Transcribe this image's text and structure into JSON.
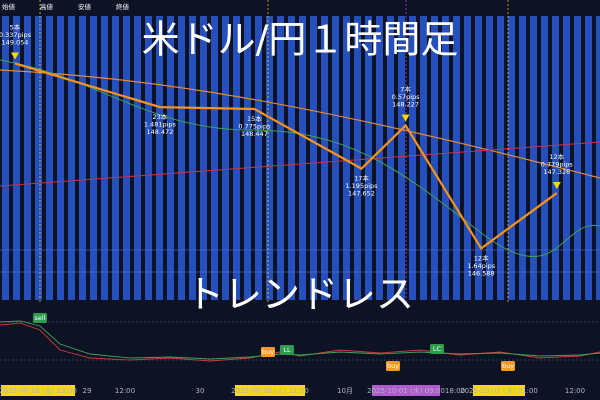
{
  "chart_data": {
    "type": "line",
    "title": "米ドル/円１時間足",
    "annotation": "トレンドレス",
    "header_labels": [
      "始値",
      "高値",
      "安値",
      "終値"
    ],
    "values": [
      149.054,
      148.472,
      148.447,
      147.652,
      148.227,
      146.588,
      147.326
    ],
    "bars": [
      5,
      23,
      15,
      17,
      7,
      12,
      12
    ],
    "bar_labels": [
      "5本",
      "23本",
      "15本",
      "17本",
      "7本",
      "12本",
      "12本"
    ],
    "pips_labels": [
      "0.337pips",
      "1.481pips",
      "0.775pips",
      "1.195pips",
      "0.57pips",
      "1.64pips",
      "0.779pips"
    ],
    "ylim": [
      145.9,
      149.9
    ],
    "line_color": "#f7931a",
    "x_labels": [
      "2025-09-26 (金)  23:00",
      "29",
      "12:00",
      "30",
      "2025-09-30 (火)  11:00",
      "10月",
      "2025-10-01 (水)  09:00",
      "18:00",
      "2025-10-02 (木)  01:00",
      "12:00"
    ],
    "signals": [
      "sell",
      "buy",
      "LL",
      "buy",
      "LC",
      "buy"
    ]
  }
}
